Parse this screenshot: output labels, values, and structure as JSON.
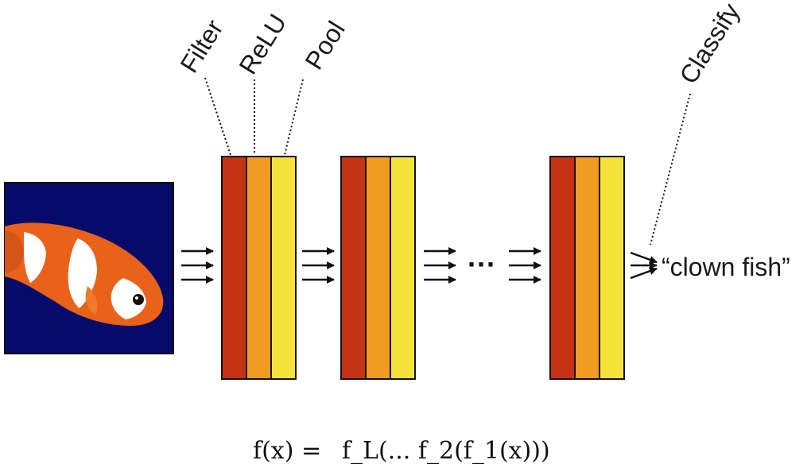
{
  "labels": {
    "filter": "Filter",
    "relu": "ReLU",
    "pool": "Pool",
    "classify": "Classify"
  },
  "output": "“clown fish”",
  "ellipsis": "···",
  "formula": {
    "lhs": "f(x) = ",
    "rhs": "f_L(... f_2(f_1(x)))"
  },
  "colors": {
    "filter": "#c63312",
    "relu": "#f29b22",
    "pool": "#f5e23a",
    "background_image": "#050a6b",
    "fish_orange": "#e8621a",
    "fish_white": "#ffffff"
  },
  "input_image": {
    "subject": "clown-fish"
  },
  "layer_blocks": 3
}
